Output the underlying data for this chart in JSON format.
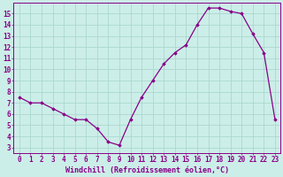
{
  "x": [
    0,
    1,
    2,
    3,
    4,
    5,
    6,
    7,
    8,
    9,
    10,
    11,
    12,
    13,
    14,
    15,
    16,
    17,
    18,
    19,
    20,
    21,
    22,
    23
  ],
  "y": [
    7.5,
    7.0,
    7.0,
    6.5,
    6.0,
    5.5,
    5.5,
    4.7,
    3.5,
    3.2,
    5.5,
    7.5,
    9.0,
    10.5,
    11.5,
    12.2,
    14.0,
    15.5,
    15.5,
    15.2,
    15.0,
    13.2,
    11.5,
    5.5
  ],
  "line_color": "#880088",
  "marker": "D",
  "marker_size": 1.8,
  "bg_color": "#cceee8",
  "grid_color": "#aad8d0",
  "xlabel": "Windchill (Refroidissement éolien,°C)",
  "xlim": [
    -0.5,
    23.5
  ],
  "ylim": [
    2.5,
    16.0
  ],
  "yticks": [
    3,
    4,
    5,
    6,
    7,
    8,
    9,
    10,
    11,
    12,
    13,
    14,
    15
  ],
  "xticks": [
    0,
    1,
    2,
    3,
    4,
    5,
    6,
    7,
    8,
    9,
    10,
    11,
    12,
    13,
    14,
    15,
    16,
    17,
    18,
    19,
    20,
    21,
    22,
    23
  ],
  "tick_color": "#880088",
  "label_color": "#880088",
  "axis_color": "#880088",
  "font_size": 5.5,
  "xlabel_fontsize": 6.0
}
